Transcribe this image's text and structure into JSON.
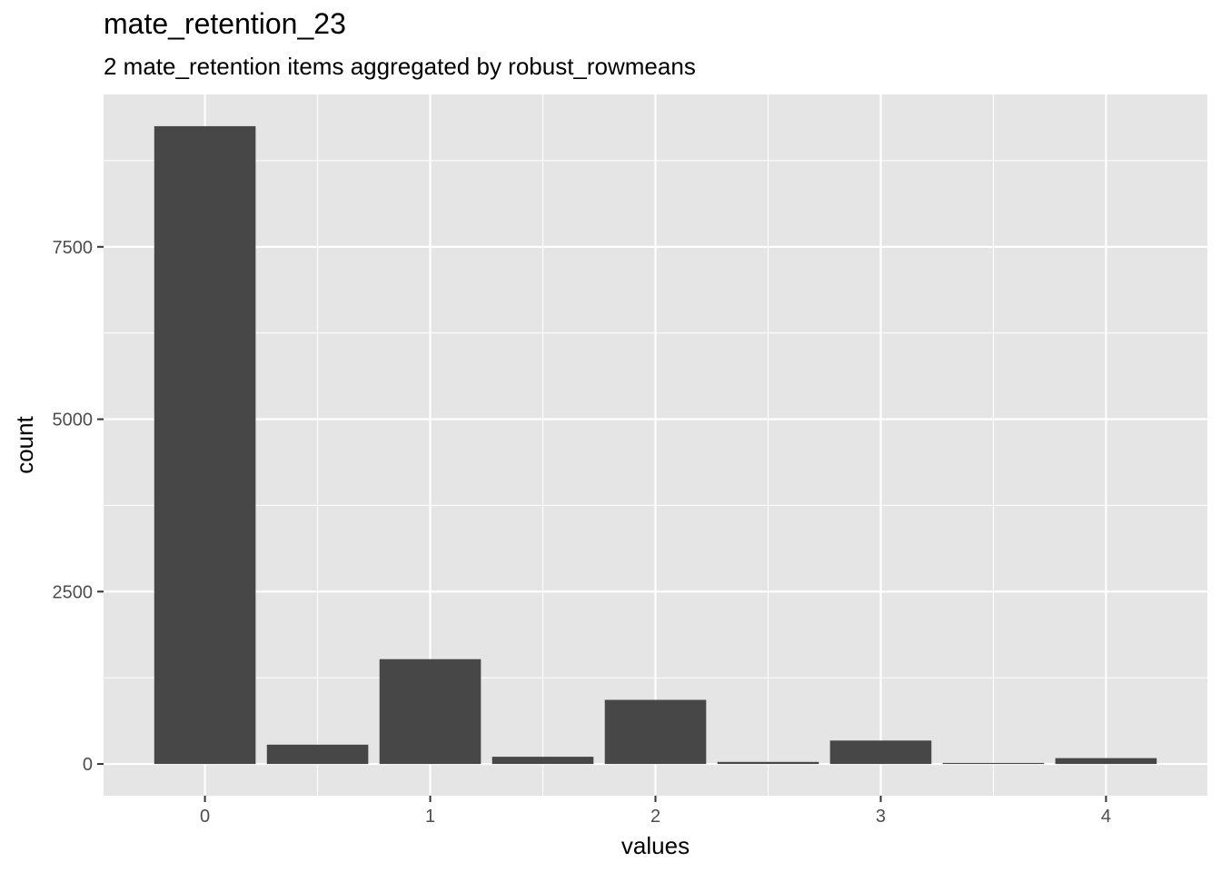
{
  "chart_data": {
    "type": "bar",
    "title": "mate_retention_23",
    "subtitle": "2 mate_retention items aggregated by robust_rowmeans",
    "xlabel": "values",
    "ylabel": "count",
    "x": [
      0,
      0.5,
      1,
      1.5,
      2,
      2.5,
      3,
      3.5,
      4
    ],
    "values": [
      9250,
      280,
      1520,
      105,
      930,
      30,
      340,
      15,
      85
    ],
    "x_ticks": [
      "0",
      "1",
      "2",
      "3",
      "4"
    ],
    "x_tick_values": [
      0,
      1,
      2,
      3,
      4
    ],
    "y_ticks": [
      "0",
      "2500",
      "5000",
      "7500"
    ],
    "y_tick_values": [
      0,
      2500,
      5000,
      7500
    ],
    "xlim": [
      -0.45,
      4.45
    ],
    "ylim": [
      -460,
      9710
    ],
    "bar_width": 0.45,
    "grid": true,
    "colors": {
      "bar": "#474747",
      "panel": "#e5e5e5",
      "grid": "#ffffff",
      "tick_text": "#4d4d4d"
    }
  }
}
